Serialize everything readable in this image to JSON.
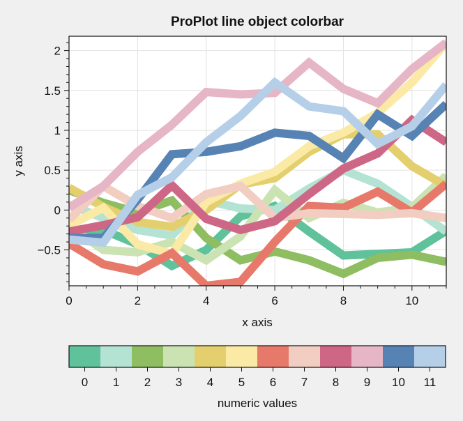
{
  "chart_data": {
    "type": "line",
    "title": "ProPlot line object colorbar",
    "xlabel": "x axis",
    "ylabel": "y axis",
    "xlim": [
      0,
      11
    ],
    "ylim": [
      -0.95,
      2.18
    ],
    "grid": true,
    "x": [
      0,
      1,
      2,
      3,
      4,
      5,
      6,
      7,
      8,
      9,
      10,
      11
    ],
    "x_ticks": [
      0,
      2,
      4,
      6,
      8,
      10
    ],
    "x_tick_labels": [
      "0",
      "2",
      "4",
      "6",
      "8",
      "10"
    ],
    "y_ticks": [
      -0.5,
      0,
      0.5,
      1,
      1.5,
      2
    ],
    "y_tick_labels": [
      "−0.5",
      "0",
      "0.5",
      "1",
      "1.5",
      "2"
    ],
    "series": [
      {
        "color": "#5fc29b",
        "values": [
          -0.33,
          -0.25,
          -0.43,
          -0.7,
          -0.5,
          -0.08,
          0.05,
          -0.27,
          -0.57,
          -0.55,
          -0.53,
          -0.26
        ]
      },
      {
        "color": "#b4e3d3",
        "values": [
          0.07,
          -0.1,
          -0.25,
          -0.32,
          0.12,
          0.02,
          0.0,
          0.27,
          0.5,
          0.33,
          0.04,
          -0.27
        ]
      },
      {
        "color": "#8fbd61",
        "values": [
          0.25,
          0.09,
          -0.03,
          0.12,
          -0.35,
          -0.63,
          -0.52,
          -0.63,
          -0.8,
          -0.6,
          -0.56,
          -0.65
        ]
      },
      {
        "color": "#cbe3b3",
        "values": [
          -0.2,
          -0.5,
          -0.53,
          -0.4,
          -0.63,
          -0.33,
          0.25,
          -0.1,
          0.09,
          -0.03,
          0.03,
          0.43
        ]
      },
      {
        "color": "#e3cf6e",
        "values": [
          0.28,
          0.04,
          -0.15,
          -0.21,
          0.0,
          0.32,
          0.4,
          0.73,
          0.95,
          0.95,
          0.55,
          0.3
        ]
      },
      {
        "color": "#faeaa5",
        "values": [
          -0.2,
          0.03,
          -0.43,
          -0.55,
          0.1,
          0.33,
          0.48,
          0.8,
          0.97,
          1.22,
          1.6,
          2.1
        ]
      },
      {
        "color": "#e7796b",
        "values": [
          -0.42,
          -0.68,
          -0.77,
          -0.54,
          -0.95,
          -0.9,
          -0.4,
          0.05,
          0.03,
          0.23,
          -0.03,
          0.33
        ]
      },
      {
        "color": "#f2cdc2",
        "values": [
          -0.12,
          0.3,
          0.05,
          -0.1,
          0.2,
          0.3,
          -0.1,
          -0.04,
          -0.05,
          -0.06,
          -0.04,
          -0.1
        ]
      },
      {
        "color": "#ce6785",
        "values": [
          -0.27,
          -0.19,
          -0.09,
          0.31,
          -0.11,
          -0.25,
          -0.14,
          0.2,
          0.52,
          0.71,
          1.13,
          0.85
        ]
      },
      {
        "color": "#e6b6c6",
        "values": [
          0.03,
          0.3,
          0.73,
          1.07,
          1.48,
          1.45,
          1.47,
          1.85,
          1.52,
          1.34,
          1.77,
          2.1
        ]
      },
      {
        "color": "#5783b4",
        "values": [
          -0.35,
          -0.35,
          0.13,
          0.7,
          0.73,
          0.8,
          0.97,
          0.93,
          0.65,
          1.2,
          0.93,
          1.33
        ]
      },
      {
        "color": "#b6cfe8",
        "values": [
          -0.37,
          -0.41,
          0.19,
          0.41,
          0.85,
          1.18,
          1.6,
          1.3,
          1.24,
          0.83,
          1.05,
          1.57
        ]
      }
    ],
    "colorbar": {
      "label": "numeric values",
      "ticks": [
        "0",
        "1",
        "2",
        "3",
        "4",
        "5",
        "6",
        "7",
        "8",
        "9",
        "10",
        "11"
      ],
      "location": "bottom"
    }
  }
}
